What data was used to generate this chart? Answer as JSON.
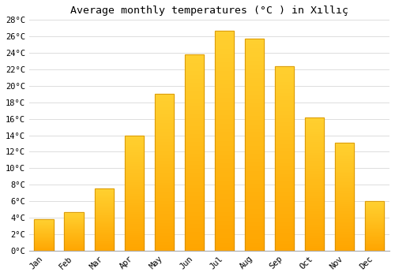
{
  "title": "Average monthly temperatures (°C ) in Xıllıç",
  "months": [
    "Jan",
    "Feb",
    "Mar",
    "Apr",
    "May",
    "Jun",
    "Jul",
    "Aug",
    "Sep",
    "Oct",
    "Nov",
    "Dec"
  ],
  "values": [
    3.8,
    4.7,
    7.5,
    14.0,
    19.0,
    23.8,
    26.7,
    25.7,
    22.4,
    16.2,
    13.1,
    6.0
  ],
  "bar_color_main": "#FFA500",
  "bar_color_light": "#FFD060",
  "bar_color_dark": "#E08000",
  "bar_edge_color": "#B8860B",
  "ylim": [
    0,
    28
  ],
  "yticks": [
    0,
    2,
    4,
    6,
    8,
    10,
    12,
    14,
    16,
    18,
    20,
    22,
    24,
    26,
    28
  ],
  "background_color": "#ffffff",
  "grid_color": "#dddddd",
  "title_fontsize": 9.5,
  "tick_fontsize": 7.5
}
